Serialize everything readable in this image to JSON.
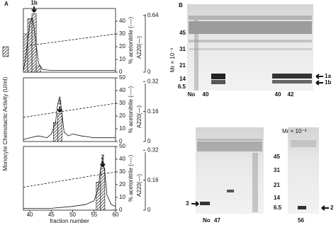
{
  "chart_data": [
    {
      "type": "bar",
      "peak_label": "1b",
      "x": [
        39,
        40,
        41,
        42
      ],
      "values": [
        30,
        42,
        46,
        5
      ],
      "xlim": [
        38.5,
        60
      ],
      "ylim": [
        0,
        50
      ],
      "yticks": [
        0,
        10,
        20,
        30,
        40
      ],
      "ylabel": "% acetonitrile (----)",
      "y2lim": [
        0,
        0.72
      ],
      "y2ticks": [
        0,
        0.64
      ],
      "y2label": "A220(—)",
      "acetonitrile": {
        "x": [
          40,
          60
        ],
        "values": [
          21,
          30
        ]
      },
      "absorbance": {
        "x": [
          38.5,
          39,
          40,
          40.5,
          41,
          42,
          43,
          45,
          50,
          55,
          60
        ],
        "values": [
          0.02,
          0.15,
          0.55,
          0.62,
          0.5,
          0.1,
          0.03,
          0.02,
          0.02,
          0.02,
          0.02
        ]
      }
    },
    {
      "type": "bar",
      "peak_label": "3",
      "x": [
        46,
        47
      ],
      "values": [
        15,
        22
      ],
      "xlim": [
        38.5,
        60
      ],
      "ylim": [
        0,
        50
      ],
      "yticks": [
        0,
        10,
        20,
        30,
        40,
        50
      ],
      "ylabel": "% acetonitrile (----)",
      "y2lim": [
        0,
        0.34
      ],
      "y2ticks": [
        0,
        0.16,
        0.32
      ],
      "y2label": "A220(—)",
      "acetonitrile": {
        "x": [
          38.5,
          60
        ],
        "values": [
          19,
          30
        ]
      },
      "absorbance": {
        "x": [
          38.5,
          40,
          42,
          44,
          45,
          46,
          46.5,
          47,
          47.5,
          48,
          49,
          50,
          52,
          55,
          58,
          60
        ],
        "values": [
          0.01,
          0.02,
          0.03,
          0.02,
          0.04,
          0.1,
          0.2,
          0.24,
          0.15,
          0.05,
          0.03,
          0.04,
          0.03,
          0.02,
          0.02,
          0.02
        ]
      }
    },
    {
      "type": "bar",
      "peak_label": "2",
      "x": [
        56,
        57
      ],
      "values": [
        22,
        33
      ],
      "xlim": [
        38.5,
        60
      ],
      "xticks": [
        40,
        45,
        50,
        55,
        60
      ],
      "xlabel": "fraction number",
      "ylim": [
        0,
        50
      ],
      "yticks": [
        0,
        10,
        20,
        30,
        40,
        50
      ],
      "ylabel": "% acetonitrile (----)",
      "y2lim": [
        0,
        0.34
      ],
      "y2ticks": [
        0,
        0.16,
        0.32
      ],
      "y2label": "A220(—)",
      "acetonitrile": {
        "x": [
          38.5,
          60
        ],
        "values": [
          18,
          30
        ]
      },
      "absorbance": {
        "x": [
          38.5,
          40,
          45,
          50,
          53,
          55,
          56,
          56.5,
          57,
          57.5,
          58,
          59,
          60
        ],
        "values": [
          0.01,
          0.01,
          0.01,
          0.02,
          0.03,
          0.05,
          0.12,
          0.22,
          0.28,
          0.2,
          0.08,
          0.03,
          0.02
        ]
      }
    }
  ],
  "figure": {
    "panel_a": "A",
    "panel_b": "B",
    "shared_ylabel": "Monocyte Chemotactic Activity (U/ml)",
    "gel_top": {
      "mr_label": "Mr × 10⁻³",
      "markers": [
        "45",
        "31",
        "21",
        "14",
        "6.5"
      ],
      "lanes": [
        "No",
        "40",
        "40",
        "42"
      ],
      "arrows": [
        "1a",
        "1b"
      ]
    },
    "gel_bottom": {
      "mr_label": "Mr × 10⁻³",
      "markers": [
        "45",
        "31",
        "21",
        "14",
        "6.5"
      ],
      "lanes": [
        "No",
        "47",
        "56"
      ],
      "arrows": [
        "3",
        "2"
      ]
    }
  }
}
